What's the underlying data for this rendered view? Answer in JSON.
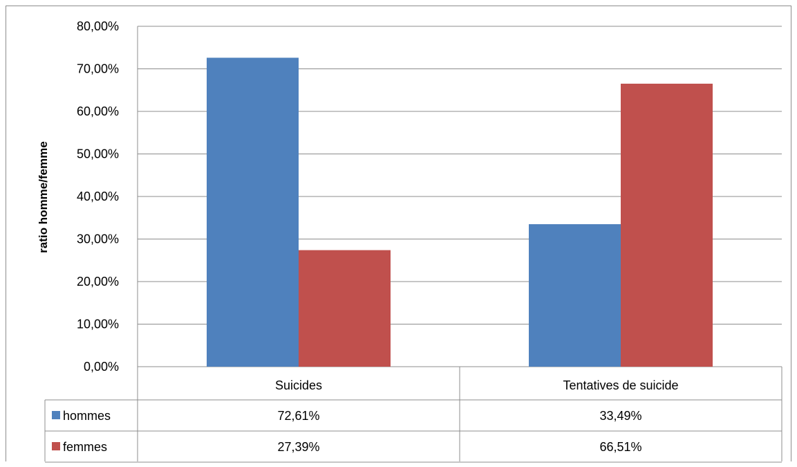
{
  "chart_data": {
    "type": "bar",
    "title": "",
    "xlabel": "",
    "ylabel": "ratio homme/femme",
    "categories": [
      "Suicides",
      "Tentatives de suicide"
    ],
    "series": [
      {
        "name": "hommes",
        "values": [
          72.61,
          33.49
        ],
        "color": "#4F81BD",
        "labels": [
          "72,61%",
          "33,49%"
        ]
      },
      {
        "name": "femmes",
        "values": [
          27.39,
          66.51
        ],
        "color": "#C0504D",
        "labels": [
          "27,39%",
          "66,51%"
        ]
      }
    ],
    "ylim": [
      0,
      80
    ],
    "yticks": [
      0,
      10,
      20,
      30,
      40,
      50,
      60,
      70,
      80
    ],
    "ytick_labels": [
      "0,00%",
      "10,00%",
      "20,00%",
      "30,00%",
      "40,00%",
      "50,00%",
      "60,00%",
      "70,00%",
      "80,00%"
    ],
    "grid": true,
    "legend": "data-table"
  }
}
